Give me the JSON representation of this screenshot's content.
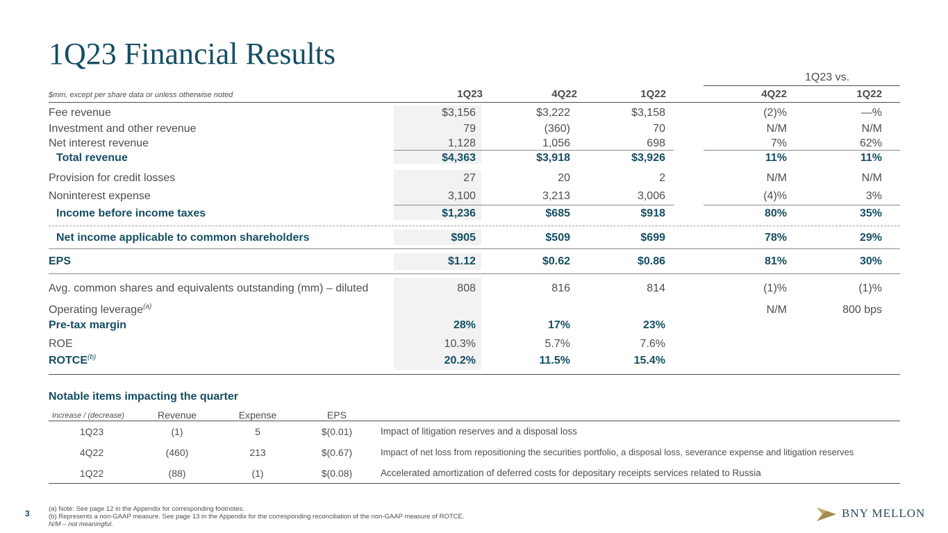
{
  "page": {
    "title": "1Q23 Financial Results",
    "page_number": "3"
  },
  "table": {
    "note": "$mm, except per share data or unless otherwise noted",
    "vs_header": "1Q23 vs.",
    "columns": [
      "1Q23",
      "4Q22",
      "1Q22",
      "4Q22",
      "1Q22"
    ],
    "rows": [
      {
        "label": "Fee revenue",
        "values": [
          "$3,156",
          "$3,222",
          "$3,158",
          "(2)%",
          "—%"
        ]
      },
      {
        "label": "Investment and other revenue",
        "values": [
          "79",
          "(360)",
          "70",
          "N/M",
          "N/M"
        ]
      },
      {
        "label": "Net interest revenue",
        "values": [
          "1,128",
          "1,056",
          "698",
          "7%",
          "62%"
        ]
      },
      {
        "label": "Total revenue",
        "values": [
          "$4,363",
          "$3,918",
          "$3,926",
          "11%",
          "11%"
        ]
      },
      {
        "label": "Provision for credit losses",
        "values": [
          "27",
          "20",
          "2",
          "N/M",
          "N/M"
        ]
      },
      {
        "label": "Noninterest expense",
        "values": [
          "3,100",
          "3,213",
          "3,006",
          "(4)%",
          "3%"
        ]
      },
      {
        "label": "Income before income taxes",
        "values": [
          "$1,236",
          "$685",
          "$918",
          "80%",
          "35%"
        ]
      },
      {
        "label": "Net income applicable to common shareholders",
        "values": [
          "$905",
          "$509",
          "$699",
          "78%",
          "29%"
        ]
      },
      {
        "label": "EPS",
        "values": [
          "$1.12",
          "$0.62",
          "$0.86",
          "81%",
          "30%"
        ]
      },
      {
        "label": "Avg. common shares and equivalents outstanding (mm) – diluted",
        "values": [
          "808",
          "816",
          "814",
          "(1)%",
          "(1)%"
        ]
      },
      {
        "label": "Operating leverage",
        "sup": "(a)",
        "values": [
          "",
          "",
          "",
          "N/M",
          "800 bps"
        ]
      },
      {
        "label": "Pre-tax margin",
        "values": [
          "28%",
          "17%",
          "23%",
          "",
          ""
        ]
      },
      {
        "label": "ROE",
        "values": [
          "10.3%",
          "5.7%",
          "7.6%",
          "",
          ""
        ]
      },
      {
        "label": "ROTCE",
        "sup": "(b)",
        "values": [
          "20.2%",
          "11.5%",
          "15.4%",
          "",
          ""
        ]
      }
    ]
  },
  "notable": {
    "title": "Notable items impacting the quarter",
    "note": "Increase / (decrease)",
    "headers": [
      "Revenue",
      "Expense",
      "EPS"
    ],
    "rows": [
      {
        "period": "1Q23",
        "revenue": "(1)",
        "expense": "5",
        "eps": "$(0.01)",
        "desc": "Impact of litigation reserves and a disposal loss"
      },
      {
        "period": "4Q22",
        "revenue": "(460)",
        "expense": "213",
        "eps": "$(0.67)",
        "desc": "Impact of net loss from repositioning the securities portfolio, a disposal loss, severance expense and litigation reserves"
      },
      {
        "period": "1Q22",
        "revenue": "(88)",
        "expense": "(1)",
        "eps": "$(0.08)",
        "desc": "Accelerated amortization of deferred costs for depositary receipts services related to Russia"
      }
    ]
  },
  "footnotes": [
    "(a) Note: See page 12 in the Appendix for corresponding footnotes.",
    "(b) Represents a non-GAAP measure. See page 13 in the Appendix for the corresponding reconciliation of the non-GAAP measure of ROTCE.",
    "N/M – not meaningful."
  ],
  "logo": {
    "text": "BNY MELLON",
    "icon": "bny-mellon-sail-icon",
    "color": "#a38a4e"
  }
}
